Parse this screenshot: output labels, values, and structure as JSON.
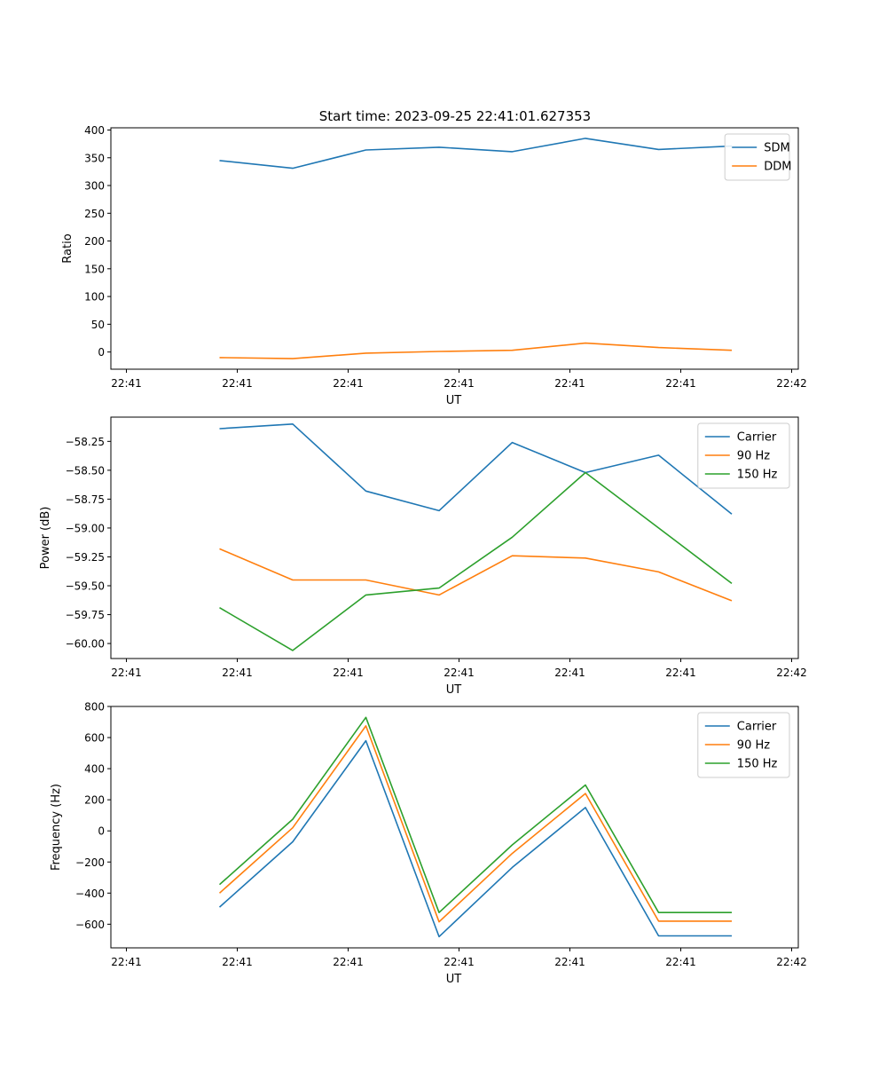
{
  "title": "Start time: 2023-09-25 22:41:01.627353",
  "colors": {
    "blue": "#1f77b4",
    "orange": "#ff7f0e",
    "green": "#2ca02c"
  },
  "chart_data": [
    {
      "type": "line",
      "ylabel": "Ratio",
      "xlabel": "UT",
      "ylim": [
        -31,
        404
      ],
      "yticks": [
        0,
        50,
        100,
        150,
        200,
        250,
        300,
        350,
        400
      ],
      "x": [
        0.42,
        0.75,
        1.08,
        1.41,
        1.74,
        2.07,
        2.4,
        2.73
      ],
      "xlim": [
        -0.07,
        3.03
      ],
      "xtick_pos": [
        0,
        0.5,
        1,
        1.5,
        2,
        2.5,
        3
      ],
      "xtick_labels": [
        "22:41",
        "22:41",
        "22:41",
        "22:41",
        "22:41",
        "22:41",
        "22:42"
      ],
      "legend_loc": "upper right",
      "series": [
        {
          "name": "SDM",
          "color": "#1f77b4",
          "values": [
            345,
            331,
            364,
            369,
            361,
            385,
            365,
            371
          ]
        },
        {
          "name": "DDM",
          "color": "#ff7f0e",
          "values": [
            -10,
            -12,
            -2,
            1,
            3,
            16,
            8,
            3
          ]
        }
      ]
    },
    {
      "type": "line",
      "ylabel": "Power (dB)",
      "xlabel": "UT",
      "ylim": [
        -60.13,
        -58.04
      ],
      "yticks": [
        -60.0,
        -59.75,
        -59.5,
        -59.25,
        -59.0,
        -58.75,
        -58.5,
        -58.25
      ],
      "ytick_labels": [
        "−60.00",
        "−59.75",
        "−59.50",
        "−59.25",
        "−59.00",
        "−58.75",
        "−58.50",
        "−58.25"
      ],
      "x": [
        0.42,
        0.75,
        1.08,
        1.41,
        1.74,
        2.07,
        2.4,
        2.73
      ],
      "xlim": [
        -0.07,
        3.03
      ],
      "xtick_pos": [
        0,
        0.5,
        1,
        1.5,
        2,
        2.5,
        3
      ],
      "xtick_labels": [
        "22:41",
        "22:41",
        "22:41",
        "22:41",
        "22:41",
        "22:41",
        "22:42"
      ],
      "legend_loc": "upper right",
      "series": [
        {
          "name": "Carrier",
          "color": "#1f77b4",
          "values": [
            -58.14,
            -58.1,
            -58.68,
            -58.85,
            -58.26,
            -58.52,
            -58.37,
            -58.88
          ]
        },
        {
          "name": "90 Hz",
          "color": "#ff7f0e",
          "values": [
            -59.18,
            -59.45,
            -59.45,
            -59.58,
            -59.24,
            -59.26,
            -59.38,
            -59.63
          ]
        },
        {
          "name": "150 Hz",
          "color": "#2ca02c",
          "values": [
            -59.69,
            -60.06,
            -59.58,
            -59.52,
            -59.08,
            -58.52,
            -59.0,
            -59.48
          ]
        }
      ]
    },
    {
      "type": "line",
      "ylabel": "Frequency (Hz)",
      "xlabel": "UT",
      "ylim": [
        -752,
        800
      ],
      "yticks": [
        -600,
        -400,
        -200,
        0,
        200,
        400,
        600,
        800
      ],
      "ytick_labels": [
        "−600",
        "−400",
        "−200",
        "0",
        "200",
        "400",
        "600",
        "800"
      ],
      "x": [
        0.42,
        0.75,
        1.08,
        1.41,
        1.74,
        2.07,
        2.4,
        2.73
      ],
      "xlim": [
        -0.07,
        3.03
      ],
      "xtick_pos": [
        0,
        0.5,
        1,
        1.5,
        2,
        2.5,
        3
      ],
      "xtick_labels": [
        "22:41",
        "22:41",
        "22:41",
        "22:41",
        "22:41",
        "22:41",
        "22:42"
      ],
      "legend_loc": "upper right",
      "series": [
        {
          "name": "Carrier",
          "color": "#1f77b4",
          "values": [
            -490,
            -70,
            580,
            -680,
            -235,
            150,
            -675,
            -675
          ]
        },
        {
          "name": "90 Hz",
          "color": "#ff7f0e",
          "values": [
            -400,
            20,
            675,
            -585,
            -145,
            240,
            -580,
            -580
          ]
        },
        {
          "name": "150 Hz",
          "color": "#2ca02c",
          "values": [
            -345,
            75,
            730,
            -525,
            -90,
            295,
            -525,
            -525
          ]
        }
      ]
    }
  ]
}
